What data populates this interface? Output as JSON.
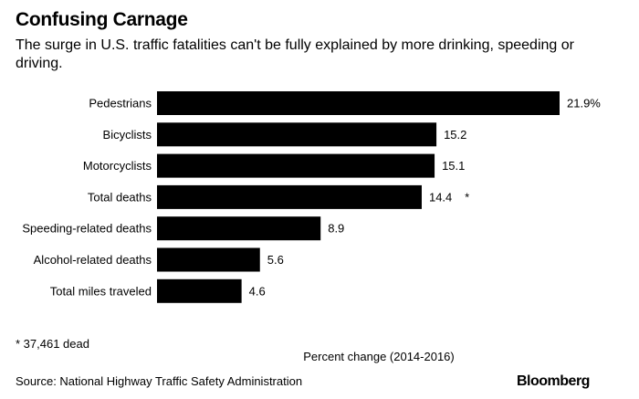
{
  "chart_data": {
    "type": "bar",
    "orientation": "horizontal",
    "title": "Confusing Carnage",
    "subtitle": "The surge in U.S. traffic fatalities can't be fully explained by more drinking, speeding or driving.",
    "categories": [
      "Pedestrians",
      "Bicyclists",
      "Motorcyclists",
      "Total deaths",
      "Speeding-related deaths",
      "Alcohol-related deaths",
      "Total miles traveled"
    ],
    "values": [
      21.9,
      15.2,
      15.1,
      14.4,
      8.9,
      5.6,
      4.6
    ],
    "data_labels": [
      "21.9%",
      "15.2",
      "15.1",
      "14.4",
      "8.9",
      "5.6",
      "4.6"
    ],
    "annotations": [
      "",
      "",
      "",
      "*",
      "",
      "",
      ""
    ],
    "xlabel": "Percent change (2014-2016)",
    "ylabel": "",
    "xlim": [
      0,
      21.9
    ],
    "grid": false,
    "bar_color": "#000000"
  },
  "footnote": "* 37,461 dead",
  "source": "Source: National Highway Traffic Safety Administration",
  "brand": "Bloomberg"
}
